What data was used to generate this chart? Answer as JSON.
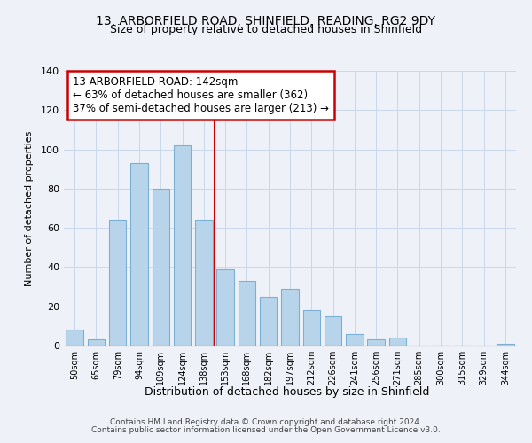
{
  "title1": "13, ARBORFIELD ROAD, SHINFIELD, READING, RG2 9DY",
  "title2": "Size of property relative to detached houses in Shinfield",
  "xlabel": "Distribution of detached houses by size in Shinfield",
  "ylabel": "Number of detached properties",
  "categories": [
    "50sqm",
    "65sqm",
    "79sqm",
    "94sqm",
    "109sqm",
    "124sqm",
    "138sqm",
    "153sqm",
    "168sqm",
    "182sqm",
    "197sqm",
    "212sqm",
    "226sqm",
    "241sqm",
    "256sqm",
    "271sqm",
    "285sqm",
    "300sqm",
    "315sqm",
    "329sqm",
    "344sqm"
  ],
  "values": [
    8,
    3,
    64,
    93,
    80,
    102,
    64,
    39,
    33,
    25,
    29,
    18,
    15,
    6,
    3,
    4,
    0,
    0,
    0,
    0,
    1
  ],
  "bar_color": "#b8d4ea",
  "bar_edge_color": "#7ab0d4",
  "highlight_index": 6,
  "highlight_line_color": "#cc0000",
  "annotation_title": "13 ARBORFIELD ROAD: 142sqm",
  "annotation_line1": "← 63% of detached houses are smaller (362)",
  "annotation_line2": "37% of semi-detached houses are larger (213) →",
  "annotation_box_color": "#ffffff",
  "annotation_box_edge_color": "#cc0000",
  "ylim": [
    0,
    140
  ],
  "yticks": [
    0,
    20,
    40,
    60,
    80,
    100,
    120,
    140
  ],
  "footer1": "Contains HM Land Registry data © Crown copyright and database right 2024.",
  "footer2": "Contains public sector information licensed under the Open Government Licence v3.0.",
  "background_color": "#eef2f8"
}
